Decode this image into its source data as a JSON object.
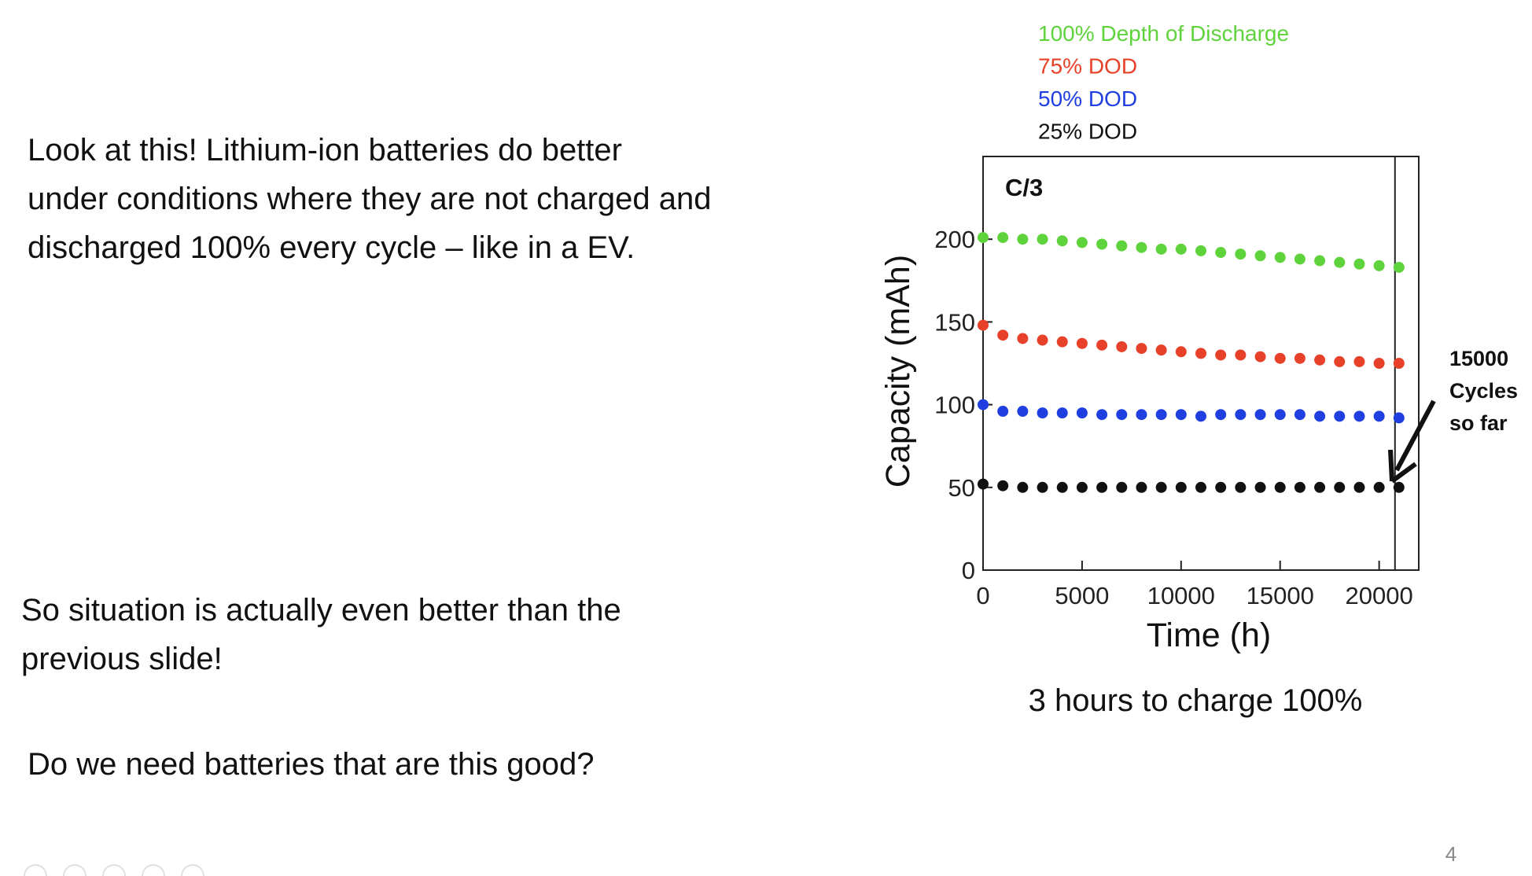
{
  "slide": {
    "paragraphs": [
      "Look at this!  Lithium-ion batteries do better",
      "under conditions where they are not charged and",
      "discharged 100% every cycle – like in a EV."
    ],
    "paragraph2": [
      "So situation is actually even better than the",
      "previous slide!"
    ],
    "question": "Do we need batteries that are this good?",
    "caption": "3 hours to charge 100%",
    "page_number": "4"
  },
  "chart_data": {
    "type": "scatter",
    "annotation": "C/3",
    "note": [
      "15000",
      "Cycles",
      "so far"
    ],
    "xlabel": "Time (h)",
    "ylabel": "Capacity (mAh)",
    "xlim": [
      0,
      22000
    ],
    "ylim": [
      0,
      250
    ],
    "xticks": [
      0,
      5000,
      10000,
      15000,
      20000
    ],
    "yticks": [
      0,
      50,
      100,
      150,
      200
    ],
    "x": [
      0,
      1000,
      2000,
      3000,
      4000,
      5000,
      6000,
      7000,
      8000,
      9000,
      10000,
      11000,
      12000,
      13000,
      14000,
      15000,
      16000,
      17000,
      18000,
      19000,
      20000,
      21000
    ],
    "series": [
      {
        "name": "100% Depth of Discharge",
        "color": "#5fd33c",
        "values": [
          201,
          201,
          200,
          200,
          199,
          198,
          197,
          196,
          195,
          194,
          194,
          193,
          192,
          191,
          190,
          189,
          188,
          187,
          186,
          185,
          184,
          183
        ]
      },
      {
        "name": "75% DOD",
        "color": "#e8412a",
        "values": [
          148,
          142,
          140,
          139,
          138,
          137,
          136,
          135,
          134,
          133,
          132,
          131,
          130,
          130,
          129,
          128,
          128,
          127,
          126,
          126,
          125,
          125
        ]
      },
      {
        "name": "50% DOD",
        "color": "#1f3fe0",
        "values": [
          100,
          96,
          96,
          95,
          95,
          95,
          94,
          94,
          94,
          94,
          94,
          93,
          94,
          94,
          94,
          94,
          94,
          93,
          93,
          93,
          93,
          92
        ]
      },
      {
        "name": "25% DOD",
        "color": "#111111",
        "values": [
          52,
          51,
          50,
          50,
          50,
          50,
          50,
          50,
          50,
          50,
          50,
          50,
          50,
          50,
          50,
          50,
          50,
          50,
          50,
          50,
          50,
          50
        ]
      }
    ]
  }
}
